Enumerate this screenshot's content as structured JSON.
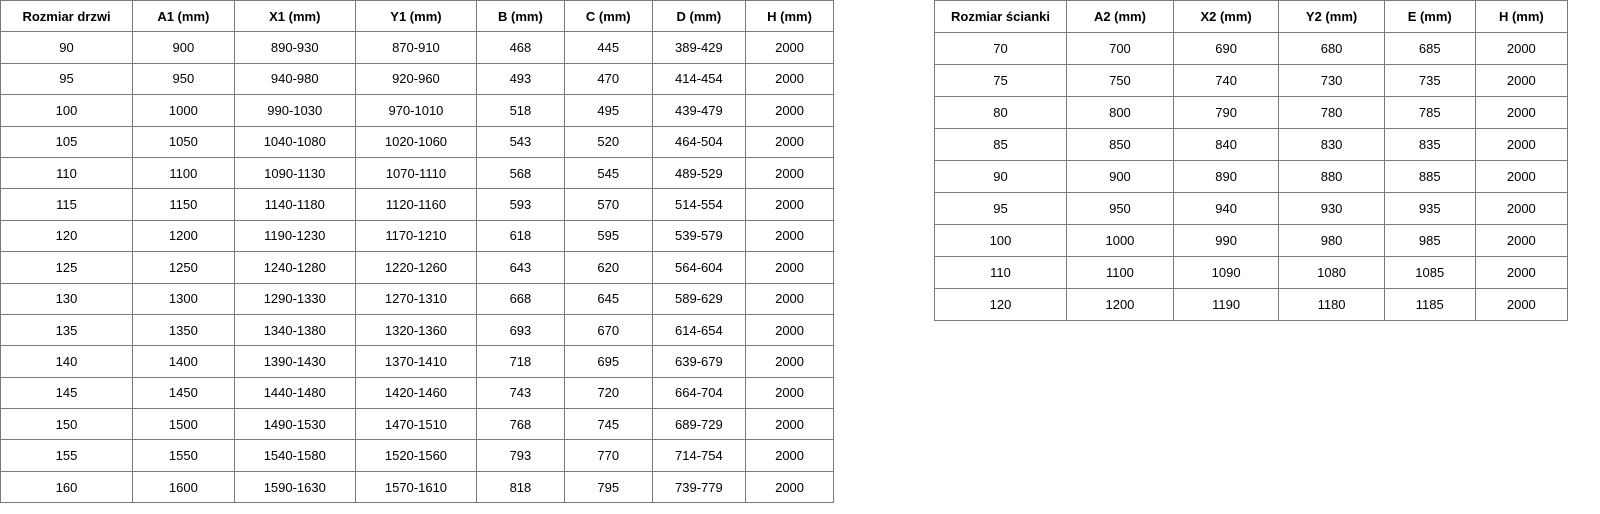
{
  "doors_table": {
    "headers": [
      "Rozmiar drzwi",
      "A1 (mm)",
      "X1 (mm)",
      "Y1 (mm)",
      "B (mm)",
      "C (mm)",
      "D (mm)",
      "H (mm)"
    ],
    "rows": [
      [
        "90",
        "900",
        "890-930",
        "870-910",
        "468",
        "445",
        "389-429",
        "2000"
      ],
      [
        "95",
        "950",
        "940-980",
        "920-960",
        "493",
        "470",
        "414-454",
        "2000"
      ],
      [
        "100",
        "1000",
        "990-1030",
        "970-1010",
        "518",
        "495",
        "439-479",
        "2000"
      ],
      [
        "105",
        "1050",
        "1040-1080",
        "1020-1060",
        "543",
        "520",
        "464-504",
        "2000"
      ],
      [
        "110",
        "1100",
        "1090-1130",
        "1070-1110",
        "568",
        "545",
        "489-529",
        "2000"
      ],
      [
        "115",
        "1150",
        "1140-1180",
        "1120-1160",
        "593",
        "570",
        "514-554",
        "2000"
      ],
      [
        "120",
        "1200",
        "1190-1230",
        "1170-1210",
        "618",
        "595",
        "539-579",
        "2000"
      ],
      [
        "125",
        "1250",
        "1240-1280",
        "1220-1260",
        "643",
        "620",
        "564-604",
        "2000"
      ],
      [
        "130",
        "1300",
        "1290-1330",
        "1270-1310",
        "668",
        "645",
        "589-629",
        "2000"
      ],
      [
        "135",
        "1350",
        "1340-1380",
        "1320-1360",
        "693",
        "670",
        "614-654",
        "2000"
      ],
      [
        "140",
        "1400",
        "1390-1430",
        "1370-1410",
        "718",
        "695",
        "639-679",
        "2000"
      ],
      [
        "145",
        "1450",
        "1440-1480",
        "1420-1460",
        "743",
        "720",
        "664-704",
        "2000"
      ],
      [
        "150",
        "1500",
        "1490-1530",
        "1470-1510",
        "768",
        "745",
        "689-729",
        "2000"
      ],
      [
        "155",
        "1550",
        "1540-1580",
        "1520-1560",
        "793",
        "770",
        "714-754",
        "2000"
      ],
      [
        "160",
        "1600",
        "1590-1630",
        "1570-1610",
        "818",
        "795",
        "739-779",
        "2000"
      ]
    ]
  },
  "wall_table": {
    "headers": [
      "Rozmiar ścianki",
      "A2 (mm)",
      "X2 (mm)",
      "Y2 (mm)",
      "E (mm)",
      "H (mm)"
    ],
    "rows": [
      [
        "70",
        "700",
        "690",
        "680",
        "685",
        "2000"
      ],
      [
        "75",
        "750",
        "740",
        "730",
        "735",
        "2000"
      ],
      [
        "80",
        "800",
        "790",
        "780",
        "785",
        "2000"
      ],
      [
        "85",
        "850",
        "840",
        "830",
        "835",
        "2000"
      ],
      [
        "90",
        "900",
        "890",
        "880",
        "885",
        "2000"
      ],
      [
        "95",
        "950",
        "940",
        "930",
        "935",
        "2000"
      ],
      [
        "100",
        "1000",
        "990",
        "980",
        "985",
        "2000"
      ],
      [
        "110",
        "1100",
        "1090",
        "1080",
        "1085",
        "2000"
      ],
      [
        "120",
        "1200",
        "1190",
        "1180",
        "1185",
        "2000"
      ]
    ]
  }
}
